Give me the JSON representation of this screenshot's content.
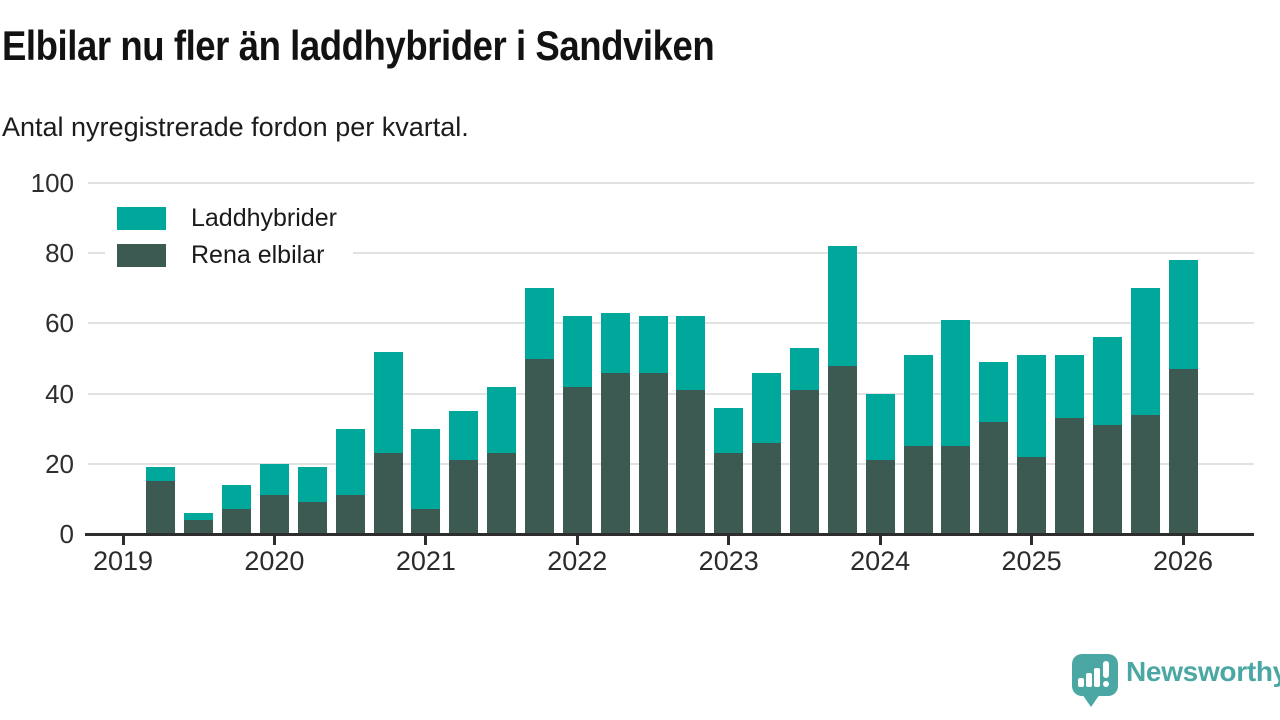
{
  "header": {
    "title": "Elbilar nu fler än laddhybrider i Sandviken",
    "subtitle": "Antal nyregistrerade fordon per kvartal."
  },
  "legend": {
    "items": [
      {
        "label": "Laddhybrider",
        "color": "#00a79b"
      },
      {
        "label": "Rena elbilar",
        "color": "#3c5a52"
      }
    ]
  },
  "chart_data": {
    "type": "bar",
    "stacked": true,
    "title": "Elbilar nu fler än laddhybrider i Sandviken",
    "subtitle": "Antal nyregistrerade fordon per kvartal.",
    "x": [
      "2019 Q2",
      "2019 Q3",
      "2019 Q4",
      "2020 Q1",
      "2020 Q2",
      "2020 Q3",
      "2020 Q4",
      "2021 Q1",
      "2021 Q2",
      "2021 Q3",
      "2021 Q4",
      "2022 Q1",
      "2022 Q2",
      "2022 Q3",
      "2022 Q4",
      "2023 Q1",
      "2023 Q2",
      "2023 Q3",
      "2023 Q4",
      "2024 Q1",
      "2024 Q2",
      "2024 Q3",
      "2024 Q4",
      "2025 Q1",
      "2025 Q2",
      "2025 Q3",
      "2025 Q4",
      "2026 Q1"
    ],
    "series": [
      {
        "name": "Rena elbilar",
        "color": "#3c5a52",
        "stack_order": "bottom",
        "values": [
          15,
          4,
          7,
          11,
          9,
          11,
          23,
          7,
          21,
          23,
          50,
          42,
          46,
          46,
          41,
          23,
          26,
          41,
          48,
          21,
          25,
          25,
          32,
          22,
          33,
          31,
          34,
          47
        ]
      },
      {
        "name": "Laddhybrider",
        "color": "#00a79b",
        "stack_order": "top",
        "values": [
          4,
          2,
          7,
          9,
          10,
          19,
          29,
          23,
          14,
          19,
          20,
          20,
          17,
          16,
          21,
          13,
          20,
          12,
          34,
          19,
          26,
          36,
          17,
          29,
          18,
          25,
          36,
          31
        ]
      }
    ],
    "totals": [
      19,
      6,
      14,
      20,
      19,
      30,
      52,
      30,
      35,
      42,
      70,
      62,
      63,
      62,
      62,
      36,
      46,
      53,
      82,
      40,
      51,
      61,
      49,
      51,
      51,
      56,
      70,
      78
    ],
    "ylim": [
      0,
      100
    ],
    "yticks": [
      0,
      20,
      40,
      60,
      80,
      100
    ],
    "xticklabels": [
      "2019",
      "2020",
      "2021",
      "2022",
      "2023",
      "2024",
      "2025",
      "2026"
    ],
    "grid": "horizontal",
    "legend_position": "inside-top-left"
  },
  "footer": {
    "brand": "Newsworthy",
    "logo_icon": "newsworthy-speech-bubble-bar-chart-icon",
    "brand_color": "#4ba7a3"
  }
}
